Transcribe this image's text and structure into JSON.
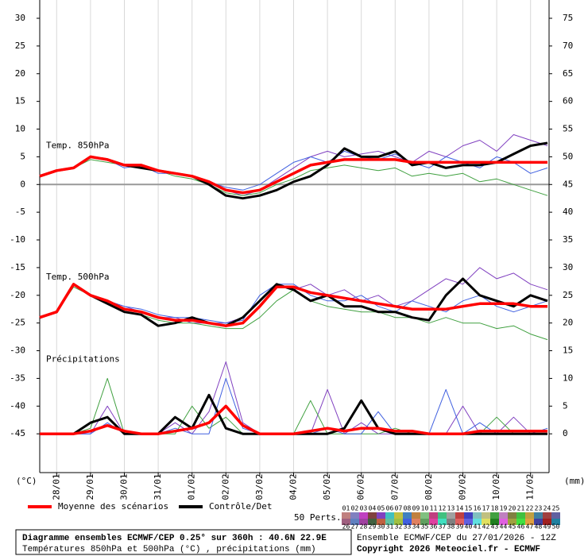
{
  "chart_data": {
    "type": "line",
    "xlim": [
      0,
      360
    ],
    "ylim": [
      -52,
      33.3
    ],
    "y2lim": [
      -7,
      78.3
    ],
    "y_label": "(°C)",
    "y2_label": "(mm)",
    "xticks": [
      {
        "value": 12,
        "label": "28/01"
      },
      {
        "value": 36,
        "label": "29/01"
      },
      {
        "value": 60,
        "label": "30/01"
      },
      {
        "value": 84,
        "label": "31/01"
      },
      {
        "value": 108,
        "label": "01/02"
      },
      {
        "value": 132,
        "label": "02/02"
      },
      {
        "value": 156,
        "label": "03/02"
      },
      {
        "value": 180,
        "label": "04/02"
      },
      {
        "value": 204,
        "label": "05/02"
      },
      {
        "value": 228,
        "label": "06/02"
      },
      {
        "value": 252,
        "label": "07/02"
      },
      {
        "value": 276,
        "label": "08/02"
      },
      {
        "value": 300,
        "label": "09/02"
      },
      {
        "value": 324,
        "label": "10/02"
      },
      {
        "value": 348,
        "label": "11/02"
      }
    ],
    "yticks": [
      30,
      25,
      20,
      15,
      10,
      5,
      0,
      -5,
      -10,
      -15,
      -20,
      -25,
      -30,
      -35,
      -40,
      -45
    ],
    "y2ticks": [
      75,
      70,
      65,
      60,
      55,
      50,
      45,
      40,
      35,
      30,
      25,
      20,
      15,
      10,
      5,
      0
    ],
    "grid": true,
    "annotations": [
      {
        "text": "Temp. 850hPa",
        "x": 0,
        "y": 7
      },
      {
        "text": "Temp. 500hPa",
        "x": 0,
        "y": -16.7
      },
      {
        "text": "Précipitations",
        "x": 0,
        "y": -31.6
      }
    ],
    "x": [
      0,
      12,
      24,
      36,
      48,
      60,
      72,
      84,
      96,
      108,
      120,
      132,
      144,
      156,
      168,
      180,
      192,
      204,
      216,
      228,
      240,
      252,
      264,
      276,
      288,
      300,
      312,
      324,
      336,
      348,
      360
    ],
    "series": [
      {
        "name": "05",
        "color": "#8040c0",
        "width": 1,
        "values": [
          1.5,
          2.5,
          3,
          5,
          4.5,
          3.5,
          3.5,
          2.5,
          2,
          1.5,
          0.5,
          -1,
          -2,
          -1,
          1,
          3,
          5,
          6,
          5,
          5.5,
          6,
          5,
          4,
          6,
          5,
          7,
          8,
          6,
          9,
          8,
          7
        ]
      },
      {
        "name": "18",
        "color": "#40a040",
        "width": 1,
        "values": [
          1.5,
          2.5,
          3,
          4.5,
          4,
          3.5,
          3,
          2.5,
          1.5,
          1,
          0,
          -1.5,
          -2,
          -1.5,
          0,
          1,
          2.5,
          3,
          3.5,
          3,
          2.5,
          3,
          1.5,
          2,
          1.5,
          2,
          0.5,
          1,
          0,
          -1,
          -2
        ]
      },
      {
        "name": "33",
        "color": "#4060e0",
        "width": 1,
        "values": [
          1.5,
          2.5,
          3,
          5,
          4.5,
          3,
          3.5,
          2,
          2,
          1.5,
          0.5,
          -0.5,
          -1,
          0,
          2,
          4,
          5,
          4,
          6,
          5,
          4.5,
          5.5,
          4,
          3,
          5,
          4,
          3,
          5,
          4,
          2,
          3
        ]
      },
      {
        "name": "Contrôle/Det",
        "color": "#000000",
        "width": 3,
        "values": [
          1.5,
          2.5,
          3,
          5,
          4.5,
          3.5,
          3,
          2.5,
          2,
          1.5,
          0,
          -2,
          -2.5,
          -2,
          -1,
          0.5,
          1.5,
          3.5,
          6.5,
          5,
          5,
          6,
          3.5,
          4,
          3,
          3.5,
          3.5,
          4,
          5.5,
          7,
          7.5
        ]
      },
      {
        "name": "Moyenne des scénarios",
        "color": "#ff0000",
        "width": 3.5,
        "values": [
          1.5,
          2.5,
          3,
          5,
          4.5,
          3.5,
          3.5,
          2.5,
          2,
          1.5,
          0.5,
          -1,
          -1.5,
          -1,
          0.5,
          2,
          3.5,
          4,
          4.5,
          4.5,
          4.5,
          4.5,
          4,
          4,
          4,
          4,
          4,
          4,
          4,
          4,
          4
        ]
      },
      {
        "name": "05",
        "color": "#8040c0",
        "width": 1,
        "values": [
          -24,
          -23,
          -18,
          -20,
          -21,
          -22,
          -23,
          -24,
          -24,
          -25,
          -25,
          -25,
          -24,
          -21,
          -18,
          -19,
          -18,
          -20,
          -19,
          -21,
          -20,
          -22,
          -21,
          -19,
          -17,
          -18,
          -15,
          -17,
          -16,
          -18,
          -19
        ]
      },
      {
        "name": "18",
        "color": "#40a040",
        "width": 1,
        "values": [
          -24,
          -23,
          -18.5,
          -20,
          -21.5,
          -23,
          -23.5,
          -24.5,
          -25,
          -25,
          -25.5,
          -26,
          -26,
          -24,
          -21,
          -19,
          -21,
          -22,
          -22.5,
          -23,
          -23,
          -24,
          -24,
          -25,
          -24,
          -25,
          -25,
          -26,
          -25.5,
          -27,
          -28
        ]
      },
      {
        "name": "33",
        "color": "#4060e0",
        "width": 1,
        "values": [
          -24,
          -23,
          -18,
          -20,
          -21,
          -22,
          -22.5,
          -23.5,
          -24,
          -24,
          -24.5,
          -25,
          -24.5,
          -20,
          -18,
          -18,
          -20,
          -21,
          -21,
          -20,
          -22,
          -23,
          -21,
          -22,
          -23,
          -21,
          -20,
          -22,
          -23,
          -22,
          -21
        ]
      },
      {
        "name": "Contrôle/Det",
        "color": "#000000",
        "width": 3,
        "values": [
          -24,
          -23,
          -18,
          -20,
          -21.5,
          -23,
          -23.5,
          -25.5,
          -25,
          -24,
          -25,
          -25.5,
          -24,
          -21,
          -18,
          -19,
          -21,
          -20,
          -22,
          -22,
          -23,
          -23,
          -24,
          -24.5,
          -20,
          -17,
          -20,
          -21,
          -22,
          -20,
          -21
        ]
      },
      {
        "name": "Moyenne des scénarios",
        "color": "#ff0000",
        "width": 3.5,
        "values": [
          -24,
          -23,
          -18,
          -20,
          -21,
          -22.5,
          -23,
          -24,
          -24.5,
          -24.5,
          -25,
          -25.5,
          -25,
          -22,
          -18.5,
          -18.5,
          -19.5,
          -20,
          -20.5,
          -21,
          -21.5,
          -22,
          -22.5,
          -22.5,
          -22.5,
          -22,
          -21.5,
          -21.5,
          -21.5,
          -22,
          -22
        ]
      },
      {
        "name": "05",
        "color": "#8040c0",
        "width": 1,
        "axis": "y2",
        "values": [
          0,
          0,
          0,
          0,
          5,
          0,
          0,
          0,
          2,
          0,
          4,
          13,
          2,
          0,
          0,
          0,
          0,
          8,
          0,
          2,
          0,
          0,
          0,
          0,
          0,
          5,
          0,
          0,
          3,
          0,
          0
        ]
      },
      {
        "name": "18",
        "color": "#40a040",
        "width": 1,
        "axis": "y2",
        "values": [
          0,
          0,
          0,
          1,
          10,
          0,
          0,
          0,
          0,
          5,
          1,
          3,
          0,
          0,
          0,
          0,
          6,
          0,
          0,
          0,
          0,
          1,
          0,
          0,
          0,
          0,
          0,
          3,
          0,
          0,
          0
        ]
      },
      {
        "name": "33",
        "color": "#4060e0",
        "width": 1,
        "axis": "y2",
        "values": [
          0,
          0,
          0,
          0,
          2,
          0,
          0,
          0,
          1,
          0,
          0,
          10,
          1,
          0,
          0,
          0,
          0,
          1,
          0,
          0,
          4,
          0,
          0,
          0,
          8,
          0,
          2,
          0,
          0,
          0,
          1
        ]
      },
      {
        "name": "Contrôle/Det",
        "color": "#000000",
        "width": 3,
        "axis": "y2",
        "values": [
          0,
          0,
          0,
          2,
          3,
          0,
          0,
          0,
          3,
          1,
          7,
          1,
          0,
          0,
          0,
          0,
          0,
          0,
          1,
          6,
          1,
          0,
          0,
          0,
          0,
          0,
          0,
          0,
          0,
          0,
          0
        ]
      },
      {
        "name": "Moyenne des scénarios",
        "color": "#ff0000",
        "width": 3.5,
        "axis": "y2",
        "values": [
          0,
          0,
          0,
          0.5,
          1.5,
          0.5,
          0,
          0,
          0.5,
          1,
          2,
          5,
          1.5,
          0,
          0,
          0,
          0.5,
          1,
          0.5,
          1,
          1,
          0.5,
          0.5,
          0,
          0,
          0,
          0.5,
          0.5,
          0.5,
          0.5,
          0.5
        ]
      }
    ],
    "perturbations_label": "50 Perts.",
    "perturbations": [
      {
        "name": "01",
        "color": "#c08080"
      },
      {
        "name": "02",
        "color": "#8080c0"
      },
      {
        "name": "03",
        "color": "#c040c0"
      },
      {
        "name": "04",
        "color": "#804040"
      },
      {
        "name": "05",
        "color": "#8040c0"
      },
      {
        "name": "06",
        "color": "#40c0c0"
      },
      {
        "name": "07",
        "color": "#c0c040"
      },
      {
        "name": "08",
        "color": "#4080c0"
      },
      {
        "name": "09",
        "color": "#c08040"
      },
      {
        "name": "10",
        "color": "#80c080"
      },
      {
        "name": "11",
        "color": "#c04080"
      },
      {
        "name": "12",
        "color": "#40c080"
      },
      {
        "name": "13",
        "color": "#a0a0a0"
      },
      {
        "name": "14",
        "color": "#c04040"
      },
      {
        "name": "15",
        "color": "#4040c0"
      },
      {
        "name": "16",
        "color": "#80c0c0"
      },
      {
        "name": "17",
        "color": "#c0c080"
      },
      {
        "name": "18",
        "color": "#40a040"
      },
      {
        "name": "19",
        "color": "#c080c0"
      },
      {
        "name": "20",
        "color": "#808040"
      },
      {
        "name": "21",
        "color": "#40c040"
      },
      {
        "name": "22",
        "color": "#c0a040"
      },
      {
        "name": "23",
        "color": "#4080a0"
      },
      {
        "name": "24",
        "color": "#a04040"
      },
      {
        "name": "25",
        "color": "#6060a0"
      },
      {
        "name": "26",
        "color": "#a06080"
      },
      {
        "name": "27",
        "color": "#6080c0"
      },
      {
        "name": "28",
        "color": "#a040a0"
      },
      {
        "name": "29",
        "color": "#406040"
      },
      {
        "name": "30",
        "color": "#c06040"
      },
      {
        "name": "31",
        "color": "#60c0a0"
      },
      {
        "name": "32",
        "color": "#a0c040"
      },
      {
        "name": "33",
        "color": "#4060e0"
      },
      {
        "name": "34",
        "color": "#e08060"
      },
      {
        "name": "35",
        "color": "#60a060"
      },
      {
        "name": "36",
        "color": "#e040a0"
      },
      {
        "name": "37",
        "color": "#40e0c0"
      },
      {
        "name": "38",
        "color": "#808080"
      },
      {
        "name": "39",
        "color": "#e06060"
      },
      {
        "name": "40",
        "color": "#6060e0"
      },
      {
        "name": "41",
        "color": "#60e0e0"
      },
      {
        "name": "42",
        "color": "#e0e060"
      },
      {
        "name": "43",
        "color": "#208020"
      },
      {
        "name": "44",
        "color": "#e060e0"
      },
      {
        "name": "45",
        "color": "#a0a040"
      },
      {
        "name": "46",
        "color": "#40e040"
      },
      {
        "name": "47",
        "color": "#e0a040"
      },
      {
        "name": "48",
        "color": "#4040a0"
      },
      {
        "name": "49",
        "color": "#a02020"
      },
      {
        "name": "50",
        "color": "#2080a0"
      }
    ],
    "footer": {
      "title": "Diagramme ensembles ECMWF/CEP 0.25° sur 360h : 40.6N 22.9E",
      "subtitle": "Températures 850hPa et 500hPa (°C) , précipitations (mm)",
      "run": "Ensemble ECMWF/CEP du 27/01/2026 - 12Z",
      "copyright": "Copyright 2026 Meteociel.fr - ECMWF"
    }
  }
}
